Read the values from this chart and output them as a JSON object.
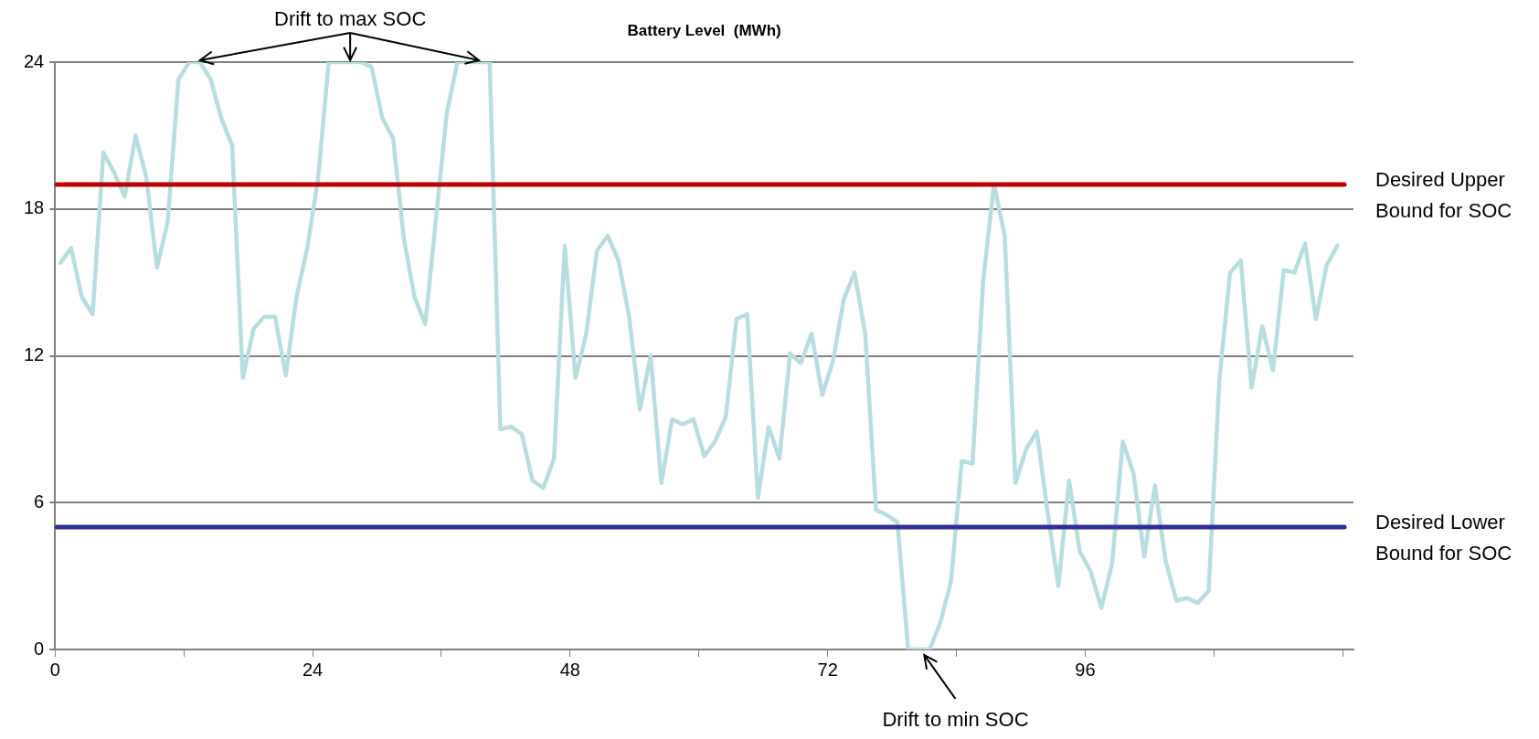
{
  "chart_data": {
    "type": "line",
    "title": "Battery Level  (MWh)",
    "x": [
      0.5,
      1.5,
      2.5,
      3.5,
      4.5,
      5.5,
      6.5,
      7.5,
      8.5,
      9.5,
      10.5,
      11.5,
      12.5,
      13.5,
      14.5,
      15.5,
      16.5,
      17.5,
      18.5,
      19.5,
      20.5,
      21.5,
      22.5,
      23.5,
      24.5,
      25.5,
      26.5,
      27.5,
      28.5,
      29.5,
      30.5,
      31.5,
      32.5,
      33.5,
      34.5,
      35.5,
      36.5,
      37.5,
      38.5,
      39.5,
      40.5,
      41.5,
      42.5,
      43.5,
      44.5,
      45.5,
      46.5,
      47.5,
      48.5,
      49.5,
      50.5,
      51.5,
      52.5,
      53.5,
      54.5,
      55.5,
      56.5,
      57.5,
      58.5,
      59.5,
      60.5,
      61.5,
      62.5,
      63.5,
      64.5,
      65.5,
      66.5,
      67.5,
      68.5,
      69.5,
      70.5,
      71.5,
      72.5,
      73.5,
      74.5,
      75.5,
      76.5,
      77.5,
      78.5,
      79.5,
      80.5,
      81.5,
      82.5,
      83.5,
      84.5,
      85.5,
      86.5,
      87.5,
      88.5,
      89.5,
      90.5,
      91.5,
      92.5,
      93.5,
      94.5,
      95.5,
      96.5,
      97.5,
      98.5,
      99.5,
      100.5,
      101.5,
      102.5,
      103.5,
      104.5,
      105.5,
      106.5,
      107.5,
      108.5,
      109.5,
      110.5,
      111.5,
      112.5,
      113.5,
      114.5,
      115.5,
      116.5,
      117.5,
      118.5,
      119.5
    ],
    "series": [
      {
        "color": "#b7dde0",
        "values": [
          15.8,
          16.4,
          14.4,
          13.7,
          20.3,
          19.5,
          18.5,
          21,
          19.3,
          15.6,
          17.5,
          23.3,
          24,
          24,
          23.3,
          21.7,
          20.6,
          11.1,
          13.1,
          13.6,
          13.6,
          11.2,
          14.4,
          16.4,
          19.2,
          24,
          24,
          24,
          24,
          23.8,
          21.7,
          20.9,
          16.8,
          14.4,
          13.3,
          17.6,
          21.9,
          24,
          24,
          24,
          24,
          9,
          9.1,
          8.8,
          6.9,
          6.6,
          7.8,
          16.5,
          11.1,
          12.9,
          16.3,
          16.9,
          15.9,
          13.6,
          9.8,
          12,
          6.8,
          9.4,
          9.2,
          9.4,
          7.9,
          8.5,
          9.5,
          13.5,
          13.7,
          6.2,
          9.1,
          7.8,
          12.1,
          11.7,
          12.9,
          10.4,
          11.8,
          14.3,
          15.4,
          12.9,
          5.7,
          5.5,
          5.2,
          0,
          0,
          0,
          1.1,
          2.8,
          7.7,
          7.6,
          15.1,
          19,
          16.9,
          6.8,
          8.2,
          8.9,
          5.6,
          2.6,
          6.9,
          4,
          3.2,
          1.7,
          3.5,
          8.5,
          7.2,
          3.8,
          6.7,
          3.6,
          2,
          2.1,
          1.9,
          2.4,
          11,
          15.4,
          15.9,
          10.7,
          13.2,
          11.4,
          15.5,
          15.4,
          16.6,
          13.5,
          15.7,
          16.5
        ]
      }
    ],
    "xlim": [
      0,
      121
    ],
    "xticks": [
      0,
      {
        "value": 12,
        "label": null
      },
      24,
      {
        "value": 36,
        "label": null
      },
      48,
      {
        "value": 60,
        "label": null
      },
      72,
      {
        "value": 84,
        "label": null
      },
      96,
      {
        "value": 108,
        "label": null
      },
      {
        "value": 120,
        "label": null
      }
    ],
    "ylim": [
      0,
      24
    ],
    "yticks": [
      0,
      6,
      12,
      18,
      24
    ],
    "grid": "y",
    "marker": "none",
    "ref_lines": [
      {
        "axis": "y",
        "value": 19,
        "label": "Desired Upper Bound for SOC",
        "color": "#c00000"
      },
      {
        "axis": "y",
        "value": 5,
        "label": "Desired Lower Bound for SOC",
        "color": "#2e3192"
      }
    ],
    "annotations": [
      {
        "text": "Drift to max SOC",
        "x": 27.5,
        "y": 24
      },
      {
        "text": "Drift to min SOC",
        "x": 80.5,
        "y": 0
      }
    ]
  }
}
